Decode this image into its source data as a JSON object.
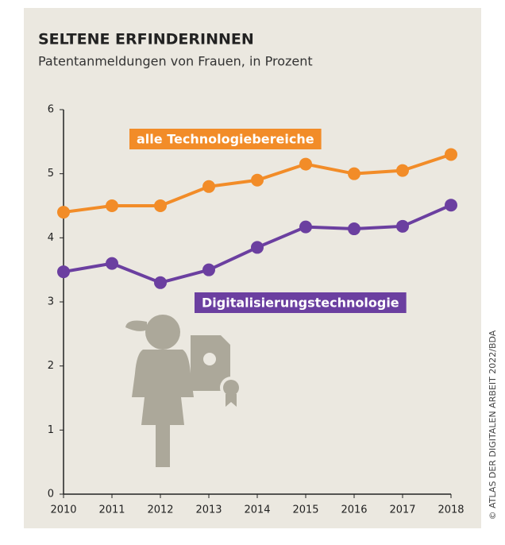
{
  "chart_data": {
    "type": "line",
    "title": "SELTENE ERFINDERINNEN",
    "subtitle": "Patentanmeldungen von Frauen, in Prozent",
    "source": "© ATLAS DER DIGITALEN ARBEIT 2022/BDA",
    "x": [
      2010,
      2011,
      2012,
      2013,
      2014,
      2015,
      2016,
      2017,
      2018
    ],
    "xlim": [
      2010,
      2018
    ],
    "xticks": [
      2010,
      2011,
      2012,
      2013,
      2014,
      2015,
      2016,
      2017,
      2018
    ],
    "ylim": [
      0,
      6
    ],
    "yticks": [
      0,
      1,
      2,
      3,
      4,
      5,
      6
    ],
    "grid": false,
    "series": [
      {
        "name": "alle Technologiebereiche",
        "color": "#f28c28",
        "values": [
          4.4,
          4.5,
          4.5,
          4.8,
          4.9,
          5.15,
          5.0,
          5.05,
          5.3
        ]
      },
      {
        "name": "Digitalisierungstechnologie",
        "color": "#6b3fa0",
        "values": [
          3.47,
          3.6,
          3.3,
          3.5,
          3.85,
          4.17,
          4.14,
          4.18,
          4.51
        ]
      }
    ]
  }
}
